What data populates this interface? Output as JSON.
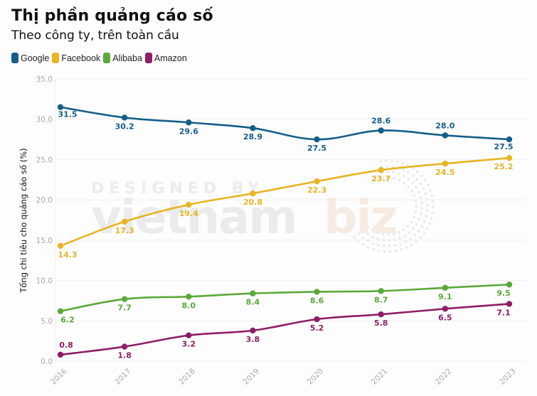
{
  "header": {
    "title": "Thị phần quảng cáo số",
    "subtitle": "Theo công ty, trên toàn cầu"
  },
  "watermark": {
    "line1": "DESIGNED BY",
    "brand_main": "vietnam",
    "brand_accent": "biz"
  },
  "chart_data": {
    "type": "line",
    "title": "Thị phần quảng cáo số",
    "subtitle": "Theo công ty, trên toàn cầu",
    "xlabel": "",
    "ylabel": "Tổng chi tiêu cho quảng cáo số (%)",
    "x": [
      "2016",
      "2017",
      "2018",
      "2019",
      "2020",
      "2021",
      "2022",
      "2023"
    ],
    "ylim": [
      0,
      35
    ],
    "yticks": [
      "0.0",
      "5.0",
      "10.0",
      "15.0",
      "20.0",
      "25.0",
      "30.0",
      "35.0"
    ],
    "grid": true,
    "legend_position": "top-left",
    "series": [
      {
        "name": "Google",
        "color": "#155e8a",
        "values": [
          31.5,
          30.2,
          29.6,
          28.9,
          27.5,
          28.6,
          28.0,
          27.5
        ],
        "labels": [
          "31.5",
          "30.2",
          "29.6",
          "28.9",
          "27.5",
          "28.6",
          "28.0",
          "27.5"
        ]
      },
      {
        "name": "Facebook",
        "color": "#e8b424",
        "values": [
          14.3,
          17.3,
          19.4,
          20.8,
          22.3,
          23.7,
          24.5,
          25.2
        ],
        "labels": [
          "14.3",
          "17.3",
          "19.4",
          "20.8",
          "22.3",
          "23.7",
          "24.5",
          "25.2"
        ]
      },
      {
        "name": "Alibaba",
        "color": "#5ba83a",
        "values": [
          6.2,
          7.7,
          8.0,
          8.4,
          8.6,
          8.7,
          9.1,
          9.5
        ],
        "labels": [
          "6.2",
          "7.7",
          "8.0",
          "8.4",
          "8.6",
          "8.7",
          "9.1",
          "9.5"
        ]
      },
      {
        "name": "Amazon",
        "color": "#8e1e66",
        "values": [
          0.8,
          1.8,
          3.2,
          3.8,
          5.2,
          5.8,
          6.5,
          7.1
        ],
        "labels": [
          "0.8",
          "1.8",
          "3.2",
          "3.8",
          "5.2",
          "5.8",
          "6.5",
          "7.1"
        ]
      }
    ]
  }
}
